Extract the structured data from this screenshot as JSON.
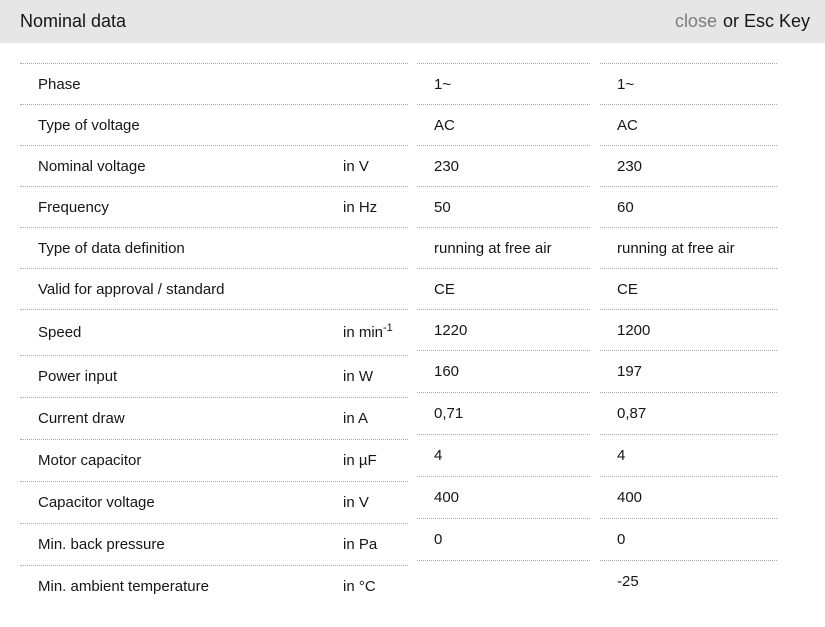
{
  "header": {
    "title": "Nominal data",
    "close_label": "close",
    "esc_hint": "or Esc Key"
  },
  "colors": {
    "header_bg": "#e6e6e6",
    "close_link": "#7d7d7d",
    "dotted_border": "#a9a9a9",
    "text": "#161616"
  },
  "table": {
    "rows": [
      {
        "label": "Phase",
        "unit": "",
        "values": [
          "1~",
          "1~"
        ]
      },
      {
        "label": "Type of voltage",
        "unit": "",
        "values": [
          "AC",
          "AC"
        ]
      },
      {
        "label": "Nominal voltage",
        "unit": "in V",
        "values": [
          "230",
          "230"
        ]
      },
      {
        "label": "Frequency",
        "unit": "in Hz",
        "values": [
          "50",
          "60"
        ]
      },
      {
        "label": "Type of data definition",
        "unit": "",
        "values": [
          "running at free air",
          "running at free air"
        ]
      },
      {
        "label": "Valid for approval / standard",
        "unit": "",
        "values": [
          "CE",
          "CE"
        ]
      },
      {
        "label": "Speed",
        "unit": "in min",
        "unit_sup": "-1",
        "values": [
          "1220",
          "1200"
        ]
      },
      {
        "label": "Power input",
        "unit": "in W",
        "values": [
          "160",
          "197"
        ]
      },
      {
        "label": "Current draw",
        "unit": "in A",
        "values": [
          "0,71",
          "0,87"
        ]
      },
      {
        "label": "Motor capacitor",
        "unit": "in µF",
        "values": [
          "4",
          "4"
        ]
      },
      {
        "label": "Capacitor voltage",
        "unit": "in V",
        "values": [
          "400",
          "400"
        ]
      },
      {
        "label": "Min. back pressure",
        "unit": "in Pa",
        "values": [
          "0",
          "0"
        ]
      },
      {
        "label": "Min. ambient temperature",
        "unit": "in °C",
        "values": [
          "",
          "-25"
        ]
      }
    ]
  }
}
